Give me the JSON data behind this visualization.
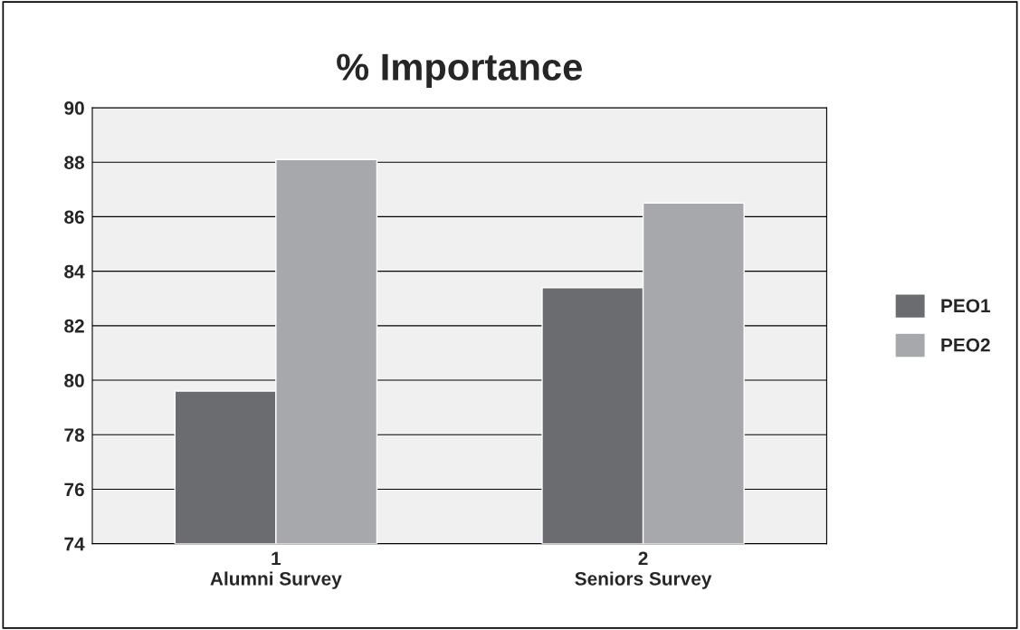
{
  "chart_data": {
    "type": "bar",
    "title": "% Importance",
    "categories": [
      "1\nAlumni Survey",
      "2\nSeniors Survey"
    ],
    "series": [
      {
        "name": "PEO1",
        "color": "#6b6c70",
        "values": [
          79.6,
          83.4
        ]
      },
      {
        "name": "PEO2",
        "color": "#a7a8ac",
        "values": [
          88.1,
          86.5
        ]
      }
    ],
    "ylim": [
      74,
      90
    ],
    "yticks": [
      74,
      76,
      78,
      80,
      82,
      84,
      86,
      88,
      90
    ],
    "grid": "y",
    "legend": "right"
  }
}
